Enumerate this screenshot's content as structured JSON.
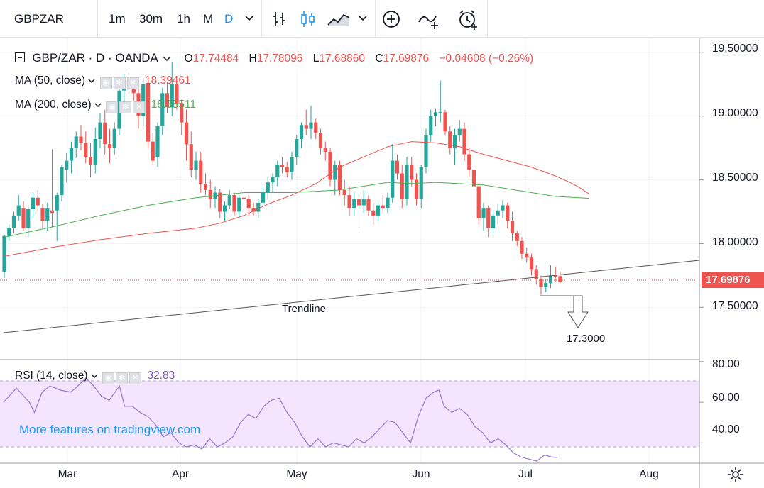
{
  "toolbar": {
    "symbol": "GBPZAR",
    "intervals": [
      "1m",
      "30m",
      "1h",
      "M",
      "D"
    ],
    "active_interval": "D"
  },
  "legend": {
    "symbol_title": "GBP/ZAR · D · OANDA",
    "open_label": "O",
    "open": "17.74484",
    "high_label": "H",
    "high": "17.78096",
    "low_label": "L",
    "low": "17.68860",
    "close_label": "C",
    "close": "17.69876",
    "change": "−0.04608 (−0.26%)",
    "ma50_label": "MA (50, close)",
    "ma50_value": "18.39461",
    "ma200_label": "MA (200, close)",
    "ma200_value": "18.35511",
    "rsi_label": "RSI (14, close)",
    "rsi_value": "32.83"
  },
  "colors": {
    "up": "#26a69a",
    "down": "#ef5350",
    "ma50": "#ef5350",
    "ma200": "#4caf50",
    "rsi": "#9575cd",
    "rsi_band": "#f3e5fd",
    "accent": "#2196f3"
  },
  "price_axis": {
    "ticks": [
      "19.50000",
      "19.00000",
      "18.50000",
      "18.00000",
      "17.50000"
    ],
    "current": "17.69876"
  },
  "rsi_axis": {
    "ticks": [
      "80.00",
      "60.00",
      "40.00"
    ]
  },
  "time_axis": {
    "ticks": [
      "Mar",
      "Apr",
      "May",
      "Jun",
      "Jul",
      "Aug"
    ]
  },
  "annotations": {
    "trendline_label": "Trendline",
    "target_label": "17.3000"
  },
  "promo": "More features on tradingview.com",
  "chart_data": {
    "type": "candlestick",
    "ylim": [
      17.09,
      19.61
    ],
    "rsi_ylim": [
      30,
      81
    ],
    "series": [
      {
        "name": "GBP/ZAR",
        "ohlc": [
          [
            17.78,
            18.07,
            17.73,
            18.06
          ],
          [
            18.06,
            18.15,
            18.02,
            18.12
          ],
          [
            18.12,
            18.25,
            18.08,
            18.22
          ],
          [
            18.22,
            18.38,
            18.18,
            18.3
          ],
          [
            18.28,
            18.33,
            18.1,
            18.12
          ],
          [
            18.12,
            18.3,
            18.05,
            18.27
          ],
          [
            18.27,
            18.4,
            18.2,
            18.36
          ],
          [
            18.36,
            18.42,
            18.25,
            18.3
          ],
          [
            18.28,
            18.31,
            18.12,
            18.18
          ],
          [
            18.18,
            18.32,
            18.1,
            18.28
          ],
          [
            18.26,
            18.74,
            18.13,
            18.24
          ],
          [
            18.26,
            18.4,
            18.02,
            18.38
          ],
          [
            18.38,
            18.62,
            18.33,
            18.6
          ],
          [
            18.58,
            18.71,
            18.48,
            18.65
          ],
          [
            18.65,
            18.8,
            18.55,
            18.75
          ],
          [
            18.75,
            18.88,
            18.67,
            18.84
          ],
          [
            18.84,
            18.93,
            18.73,
            18.79
          ],
          [
            18.79,
            18.88,
            18.63,
            18.68
          ],
          [
            18.68,
            18.79,
            18.52,
            18.62
          ],
          [
            18.62,
            18.91,
            18.55,
            18.82
          ],
          [
            18.82,
            19.02,
            18.75,
            18.95
          ],
          [
            18.95,
            19.05,
            18.7,
            18.78
          ],
          [
            18.78,
            18.9,
            18.63,
            18.75
          ],
          [
            18.75,
            18.95,
            18.7,
            18.9
          ],
          [
            18.9,
            19.25,
            18.85,
            19.2
          ],
          [
            19.2,
            19.33,
            19.12,
            19.28
          ],
          [
            19.28,
            19.36,
            19.18,
            19.24
          ],
          [
            19.24,
            19.3,
            19.12,
            19.18
          ],
          [
            19.18,
            19.28,
            18.9,
            19.0
          ],
          [
            19.0,
            19.3,
            18.92,
            19.25
          ],
          [
            19.25,
            19.28,
            18.75,
            18.8
          ],
          [
            18.8,
            18.87,
            18.62,
            18.65
          ],
          [
            18.68,
            18.95,
            18.6,
            18.92
          ],
          [
            18.92,
            19.22,
            18.85,
            19.18
          ],
          [
            19.18,
            19.27,
            19.02,
            19.07
          ],
          [
            19.07,
            19.42,
            19.0,
            19.25
          ],
          [
            19.25,
            19.3,
            19.05,
            19.1
          ],
          [
            19.1,
            19.13,
            18.85,
            18.95
          ],
          [
            18.95,
            19.05,
            18.65,
            18.78
          ],
          [
            18.78,
            18.88,
            18.52,
            18.58
          ],
          [
            18.58,
            18.72,
            18.5,
            18.65
          ],
          [
            18.65,
            18.72,
            18.4,
            18.47
          ],
          [
            18.47,
            18.55,
            18.38,
            18.42
          ],
          [
            18.42,
            18.5,
            18.28,
            18.35
          ],
          [
            18.35,
            18.45,
            18.28,
            18.4
          ],
          [
            18.4,
            18.43,
            18.2,
            18.25
          ],
          [
            18.25,
            18.33,
            18.18,
            18.3
          ],
          [
            18.3,
            18.42,
            18.27,
            18.38
          ],
          [
            18.38,
            18.4,
            18.22,
            18.25
          ],
          [
            18.25,
            18.38,
            18.2,
            18.36
          ],
          [
            18.36,
            18.42,
            18.28,
            18.35
          ],
          [
            18.35,
            18.38,
            18.22,
            18.28
          ],
          [
            18.28,
            18.32,
            18.22,
            18.25
          ],
          [
            18.25,
            18.35,
            18.2,
            18.32
          ],
          [
            18.32,
            18.45,
            18.3,
            18.4
          ],
          [
            18.4,
            18.52,
            18.35,
            18.48
          ],
          [
            18.48,
            18.55,
            18.4,
            18.52
          ],
          [
            18.52,
            18.65,
            18.45,
            18.62
          ],
          [
            18.62,
            18.68,
            18.55,
            18.6
          ],
          [
            18.6,
            18.64,
            18.52,
            18.56
          ],
          [
            18.56,
            18.72,
            18.5,
            18.68
          ],
          [
            18.68,
            18.85,
            18.62,
            18.82
          ],
          [
            18.82,
            18.95,
            18.75,
            18.93
          ],
          [
            18.93,
            19.05,
            18.85,
            18.9
          ],
          [
            18.9,
            19.08,
            18.82,
            18.95
          ],
          [
            18.95,
            18.98,
            18.82,
            18.87
          ],
          [
            18.87,
            18.9,
            18.7,
            18.75
          ],
          [
            18.75,
            18.8,
            18.65,
            18.72
          ],
          [
            18.72,
            18.75,
            18.45,
            18.5
          ],
          [
            18.5,
            18.65,
            18.38,
            18.62
          ],
          [
            18.62,
            18.65,
            18.38,
            18.42
          ],
          [
            18.42,
            18.5,
            18.3,
            18.38
          ],
          [
            18.38,
            18.45,
            18.22,
            18.28
          ],
          [
            18.28,
            18.4,
            18.22,
            18.35
          ],
          [
            18.35,
            18.37,
            18.1,
            18.3
          ],
          [
            18.3,
            18.42,
            18.24,
            18.35
          ],
          [
            18.35,
            18.38,
            18.22,
            18.26
          ],
          [
            18.26,
            18.32,
            18.15,
            18.22
          ],
          [
            18.22,
            18.32,
            18.18,
            18.3
          ],
          [
            18.3,
            18.38,
            18.25,
            18.28
          ],
          [
            18.28,
            18.4,
            18.24,
            18.36
          ],
          [
            18.36,
            18.78,
            18.32,
            18.65
          ],
          [
            18.65,
            18.7,
            18.5,
            18.55
          ],
          [
            18.55,
            18.62,
            18.28,
            18.35
          ],
          [
            18.35,
            18.68,
            18.3,
            18.62
          ],
          [
            18.62,
            18.68,
            18.45,
            18.5
          ],
          [
            18.5,
            18.55,
            18.3,
            18.35
          ],
          [
            18.35,
            18.62,
            18.28,
            18.6
          ],
          [
            18.6,
            18.9,
            18.55,
            18.85
          ],
          [
            18.85,
            19.05,
            18.8,
            19.0
          ],
          [
            19.0,
            19.06,
            18.92,
            19.03
          ],
          [
            19.03,
            19.28,
            18.95,
            19.03
          ],
          [
            19.03,
            19.05,
            18.85,
            18.88
          ],
          [
            18.88,
            18.92,
            18.7,
            18.75
          ],
          [
            18.75,
            18.9,
            18.62,
            18.85
          ],
          [
            18.85,
            18.97,
            18.8,
            18.9
          ],
          [
            18.9,
            18.95,
            18.65,
            18.7
          ],
          [
            18.7,
            18.75,
            18.52,
            18.58
          ],
          [
            18.58,
            18.6,
            18.4,
            18.45
          ],
          [
            18.45,
            18.48,
            18.15,
            18.2
          ],
          [
            18.2,
            18.32,
            18.1,
            18.28
          ],
          [
            18.28,
            18.3,
            18.05,
            18.12
          ],
          [
            18.12,
            18.26,
            18.08,
            18.22
          ],
          [
            18.22,
            18.31,
            18.15,
            18.26
          ],
          [
            18.26,
            18.34,
            18.2,
            18.3
          ],
          [
            18.3,
            18.32,
            18.12,
            18.18
          ],
          [
            18.18,
            18.25,
            18.02,
            18.08
          ],
          [
            18.08,
            18.1,
            17.98,
            18.02
          ],
          [
            18.02,
            18.05,
            17.88,
            17.92
          ],
          [
            17.92,
            17.97,
            17.85,
            17.89
          ],
          [
            17.89,
            17.92,
            17.75,
            17.8
          ],
          [
            17.8,
            17.83,
            17.68,
            17.72
          ],
          [
            17.72,
            17.75,
            17.6,
            17.66
          ],
          [
            17.66,
            17.72,
            17.62,
            17.69
          ],
          [
            17.69,
            17.83,
            17.65,
            17.75
          ],
          [
            17.75,
            17.82,
            17.7,
            17.74
          ],
          [
            17.74484,
            17.78096,
            17.6886,
            17.69876
          ]
        ]
      },
      {
        "name": "MA (50, close)",
        "values": [
          [
            0,
            17.9
          ],
          [
            10,
            17.97
          ],
          [
            20,
            18.03
          ],
          [
            30,
            18.08
          ],
          [
            40,
            18.12
          ],
          [
            45,
            18.16
          ],
          [
            50,
            18.22
          ],
          [
            55,
            18.31
          ],
          [
            60,
            18.38
          ],
          [
            65,
            18.47
          ],
          [
            70,
            18.6
          ],
          [
            75,
            18.68
          ],
          [
            80,
            18.76
          ],
          [
            85,
            18.8
          ],
          [
            90,
            18.79
          ],
          [
            95,
            18.76
          ],
          [
            100,
            18.7
          ],
          [
            105,
            18.65
          ],
          [
            110,
            18.6
          ],
          [
            115,
            18.53
          ],
          [
            118,
            18.48
          ],
          [
            120,
            18.44
          ],
          [
            122,
            18.39
          ]
        ]
      },
      {
        "name": "MA (200, close)",
        "values": [
          [
            0,
            18.05
          ],
          [
            10,
            18.13
          ],
          [
            20,
            18.22
          ],
          [
            30,
            18.3
          ],
          [
            40,
            18.36
          ],
          [
            50,
            18.4
          ],
          [
            60,
            18.4
          ],
          [
            70,
            18.42
          ],
          [
            75,
            18.45
          ],
          [
            80,
            18.48
          ],
          [
            85,
            18.47
          ],
          [
            90,
            18.48
          ],
          [
            95,
            18.47
          ],
          [
            100,
            18.46
          ],
          [
            105,
            18.43
          ],
          [
            110,
            18.4
          ],
          [
            115,
            18.37
          ],
          [
            120,
            18.36
          ],
          [
            122,
            18.355
          ]
        ]
      },
      {
        "name": "RSI (14, close)",
        "values": [
          [
            0,
            60
          ],
          [
            5,
            67
          ],
          [
            10,
            60
          ],
          [
            12,
            55
          ],
          [
            15,
            65
          ],
          [
            18,
            68
          ],
          [
            22,
            66
          ],
          [
            26,
            65
          ],
          [
            28,
            67
          ],
          [
            32,
            72
          ],
          [
            35,
            68
          ],
          [
            38,
            63
          ],
          [
            41,
            61
          ],
          [
            45,
            68
          ],
          [
            47,
            58
          ],
          [
            50,
            58
          ],
          [
            53,
            55
          ],
          [
            56,
            53
          ],
          [
            59,
            49
          ],
          [
            62,
            43
          ],
          [
            65,
            45
          ],
          [
            68,
            40
          ],
          [
            71,
            38
          ],
          [
            74,
            39
          ],
          [
            77,
            37
          ],
          [
            80,
            42
          ],
          [
            83,
            38
          ],
          [
            86,
            40
          ],
          [
            89,
            43
          ],
          [
            92,
            50
          ],
          [
            95,
            54
          ],
          [
            98,
            52
          ],
          [
            101,
            58
          ],
          [
            104,
            61
          ],
          [
            107,
            62
          ],
          [
            110,
            55
          ],
          [
            113,
            50
          ],
          [
            116,
            43
          ],
          [
            119,
            38
          ],
          [
            122,
            42
          ],
          [
            125,
            38
          ],
          [
            128,
            40
          ],
          [
            131,
            39
          ],
          [
            134,
            38
          ],
          [
            137,
            42
          ],
          [
            140,
            40
          ],
          [
            143,
            43
          ],
          [
            146,
            47
          ],
          [
            149,
            51
          ],
          [
            152,
            50
          ],
          [
            155,
            45
          ],
          [
            158,
            40
          ],
          [
            161,
            53
          ],
          [
            164,
            62
          ],
          [
            167,
            65
          ],
          [
            169,
            66
          ],
          [
            171,
            58
          ],
          [
            174,
            55
          ],
          [
            177,
            57
          ],
          [
            180,
            54
          ],
          [
            183,
            48
          ],
          [
            186,
            45
          ],
          [
            189,
            40
          ],
          [
            192,
            42
          ],
          [
            195,
            39
          ],
          [
            198,
            35
          ],
          [
            201,
            33
          ],
          [
            204,
            32
          ],
          [
            207,
            31
          ],
          [
            210,
            34
          ],
          [
            213,
            33
          ],
          [
            215,
            32.83
          ]
        ]
      }
    ]
  }
}
